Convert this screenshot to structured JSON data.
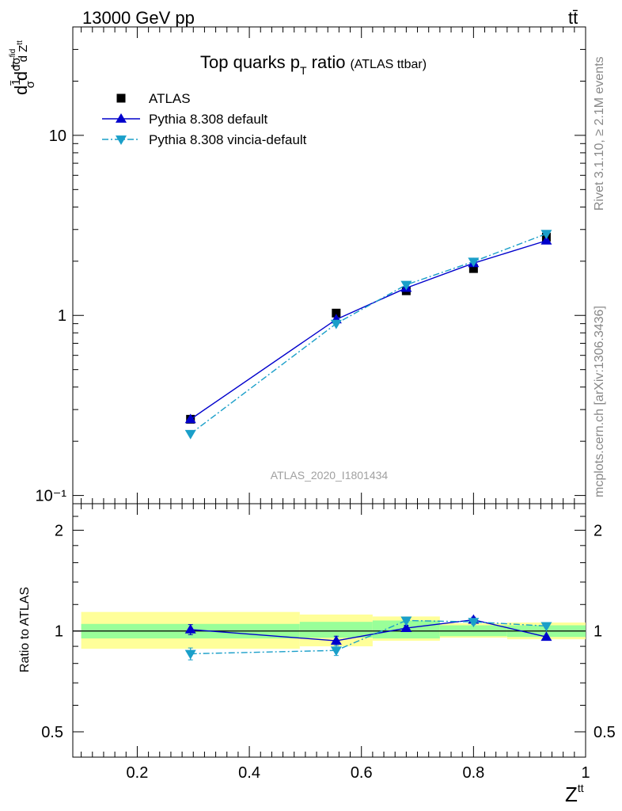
{
  "header": {
    "left_text": "13000 GeV pp",
    "right_text": "tt̄"
  },
  "side_labels": {
    "rivet": "Rivet 3.1.10, ≥ 2.1M events",
    "mcplots": "mcplots.cern.ch [arXiv:1306.3436]"
  },
  "chart_data": [
    {
      "type": "line",
      "title": "Top quarks p_T ratio",
      "title_main": "Top quarks p",
      "title_sub": "T",
      "title_rest": " ratio",
      "title_suffix": "(ATLAS ttbar)",
      "watermark": "ATLAS_2020_I1801434",
      "ylabel": "1/σ dσ^fid / d Z^tt",
      "yscale": "log",
      "xlim": [
        0.085,
        1.0
      ],
      "ylim": [
        0.09,
        40
      ],
      "y_tick_labels": [
        "10⁻¹",
        "1",
        "10"
      ],
      "legend_placement": "top-left",
      "series": [
        {
          "name": "ATLAS",
          "marker": "square",
          "color": "#000000",
          "x": [
            0.295,
            0.555,
            0.68,
            0.8,
            0.93
          ],
          "y": [
            0.265,
            1.03,
            1.37,
            1.82,
            2.72
          ]
        },
        {
          "name": "Pythia 8.308 default",
          "marker": "triangle-up",
          "line": "solid",
          "color": "#0000cc",
          "x": [
            0.295,
            0.555,
            0.68,
            0.8,
            0.93
          ],
          "y": [
            0.265,
            0.95,
            1.42,
            1.95,
            2.6
          ]
        },
        {
          "name": "Pythia 8.308 vincia-default",
          "marker": "triangle-down",
          "line": "dashdot",
          "color": "#1a9fc9",
          "x": [
            0.295,
            0.555,
            0.68,
            0.8,
            0.93
          ],
          "y": [
            0.22,
            0.9,
            1.48,
            1.99,
            2.84
          ]
        }
      ]
    },
    {
      "type": "line",
      "ylabel": "Ratio to ATLAS",
      "xlabel": "Z^tt",
      "xlabel_main": "Z",
      "xlabel_sup": "tt",
      "yscale": "log",
      "xlim": [
        0.085,
        1.0
      ],
      "ylim": [
        0.42,
        2.4
      ],
      "x_ticks": [
        0.2,
        0.4,
        0.6,
        0.8,
        1.0
      ],
      "x_tick_labels": [
        "0.2",
        "0.4",
        "0.6",
        "0.8",
        "1"
      ],
      "y_ticks": [
        0.5,
        1,
        2
      ],
      "y_tick_labels": [
        "0.5",
        "1",
        "2"
      ],
      "bands": [
        {
          "x0": 0.1,
          "x1": 0.49,
          "inner": [
            0.95,
            1.05
          ],
          "outer": [
            0.885,
            1.14
          ]
        },
        {
          "x0": 0.49,
          "x1": 0.62,
          "inner": [
            0.955,
            1.065
          ],
          "outer": [
            0.9,
            1.12
          ]
        },
        {
          "x0": 0.62,
          "x1": 0.74,
          "inner": [
            0.95,
            1.075
          ],
          "outer": [
            0.935,
            1.105
          ]
        },
        {
          "x0": 0.74,
          "x1": 0.86,
          "inner": [
            0.965,
            1.04
          ],
          "outer": [
            0.955,
            1.055
          ]
        },
        {
          "x0": 0.86,
          "x1": 1.0,
          "inner": [
            0.96,
            1.04
          ],
          "outer": [
            0.945,
            1.06
          ]
        }
      ],
      "series": [
        {
          "name": "Pythia 8.308 default",
          "marker": "triangle-up",
          "line": "solid",
          "color": "#0000cc",
          "x": [
            0.295,
            0.555,
            0.68,
            0.8,
            0.93
          ],
          "y": [
            1.01,
            0.935,
            1.02,
            1.08,
            0.96
          ],
          "err": [
            0.035,
            0.03,
            0.02,
            0.02,
            0.01
          ]
        },
        {
          "name": "Pythia 8.308 vincia-default",
          "marker": "triangle-down",
          "line": "dashdot",
          "color": "#1a9fc9",
          "x": [
            0.295,
            0.555,
            0.68,
            0.8,
            0.93
          ],
          "y": [
            0.855,
            0.875,
            1.075,
            1.065,
            1.035
          ],
          "err": [
            0.035,
            0.03,
            0.015,
            0.02,
            0.01
          ]
        }
      ]
    }
  ]
}
